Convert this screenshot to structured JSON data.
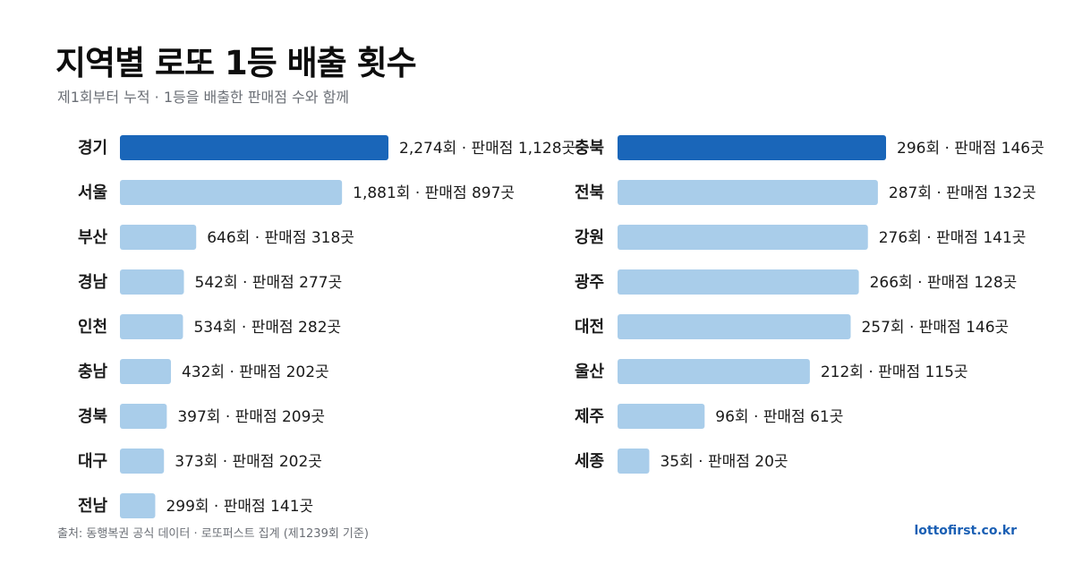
{
  "header": {
    "title": "지역별 로또 1등 배출 횟수",
    "subtitle": "제1회부터 누적 · 1등을 배출한 판매점 수와 함께"
  },
  "footer": {
    "source": "출처: 동행복권 공식 데이터 · 로또퍼스트 집계 (제1239회 기준)",
    "site": "lottofirst.co.kr"
  },
  "colors": {
    "highlight": "#1a66b9",
    "bar": "#a9cdea"
  },
  "chart_data": [
    {
      "type": "bar",
      "orientation": "horizontal",
      "categories": [
        "경기",
        "서울",
        "부산",
        "경남",
        "인천",
        "충남",
        "경북",
        "대구",
        "전남"
      ],
      "values": [
        2274,
        1881,
        646,
        542,
        534,
        432,
        397,
        373,
        299
      ],
      "stores": [
        1128,
        897,
        318,
        277,
        282,
        202,
        209,
        202,
        141
      ],
      "data_labels": [
        "2,274회 · 판매점 1,128곳",
        "1,881회 · 판매점 897곳",
        "646회 · 판매점 318곳",
        "542회 · 판매점 277곳",
        "534회 · 판매점 282곳",
        "432회 · 판매점 202곳",
        "397회 · 판매점 209곳",
        "373회 · 판매점 202곳",
        "299회 · 판매점 141곳"
      ],
      "highlight": "경기"
    },
    {
      "type": "bar",
      "orientation": "horizontal",
      "categories": [
        "충북",
        "전북",
        "강원",
        "광주",
        "대전",
        "울산",
        "제주",
        "세종"
      ],
      "values": [
        296,
        287,
        276,
        266,
        257,
        212,
        96,
        35
      ],
      "stores": [
        146,
        132,
        141,
        128,
        146,
        115,
        61,
        20
      ],
      "data_labels": [
        "296회 · 판매점 146곳",
        "287회 · 판매점 132곳",
        "276회 · 판매점 141곳",
        "266회 · 판매점 128곳",
        "257회 · 판매점 146곳",
        "212회 · 판매점 115곳",
        "96회 · 판매점 61곳",
        "35회 · 판매점 20곳"
      ],
      "highlight": "충북"
    }
  ]
}
